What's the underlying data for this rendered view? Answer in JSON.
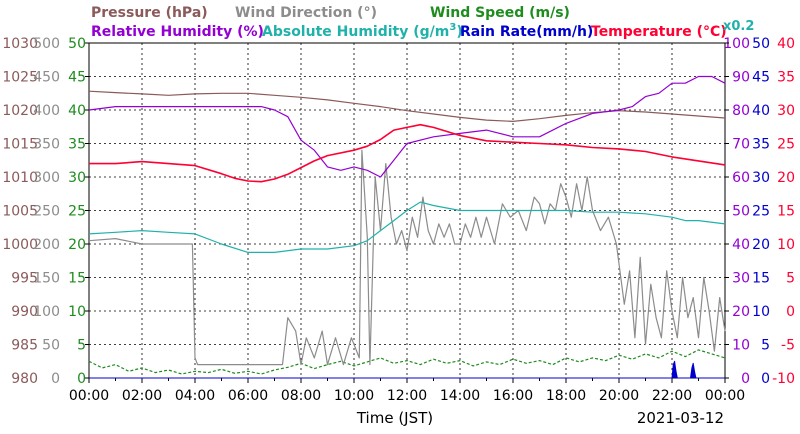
{
  "chart_data": {
    "type": "line",
    "legend": {
      "row1": [
        {
          "key": "pressure",
          "text": "Pressure (hPa)",
          "color": "#8b5a5a"
        },
        {
          "key": "wind_dir",
          "text": "Wind Direction (°)",
          "color": "#8c8c8c"
        },
        {
          "key": "wind_speed",
          "text": "Wind Speed (m/s)",
          "color": "#1e8c1e"
        }
      ],
      "row2": [
        {
          "key": "humidity",
          "text": "Relative Humidity (%)",
          "color": "#9400d3"
        },
        {
          "key": "abs_humidity",
          "text": "Absolute Humidity (g/m",
          "sup": "3",
          "tail": ")",
          "color": "#20b2aa"
        },
        {
          "key": "rain",
          "text": "Rain Rate(mm/h)",
          "color": "#0000cd"
        },
        {
          "key": "temperature",
          "text": "Temperature (°C)",
          "color": "#ff0033"
        }
      ],
      "multiplier": {
        "text": "x0.2",
        "color": "#20b2aa"
      }
    },
    "xlabel": "Time (JST)",
    "date": "2021-03-12",
    "x_ticks": [
      "00:00",
      "02:00",
      "04:00",
      "06:00",
      "08:00",
      "10:00",
      "12:00",
      "14:00",
      "16:00",
      "18:00",
      "20:00",
      "22:00",
      "00:00"
    ],
    "xlim_hours": [
      0,
      24
    ],
    "axes": {
      "pressure": {
        "min": 980,
        "max": 1030,
        "ticks": [
          "1030",
          "1025",
          "1020",
          "1015",
          "1010",
          "1005",
          "1000",
          "995",
          "990",
          "985",
          "980"
        ],
        "color": "#8b5a5a"
      },
      "wind_dir": {
        "min": 0,
        "max": 500,
        "ticks": [
          "500",
          "450",
          "400",
          "350",
          "300",
          "250",
          "200",
          "150",
          "100",
          "50",
          "0"
        ],
        "color": "#8c8c8c"
      },
      "wind_speed": {
        "min": 0,
        "max": 50,
        "ticks": [
          "50",
          "45",
          "40",
          "35",
          "30",
          "25",
          "20",
          "15",
          "10",
          "5",
          "0"
        ],
        "color": "#1e8c1e"
      },
      "humidity": {
        "min": 0,
        "max": 100,
        "ticks": [
          "100",
          "90",
          "80",
          "70",
          "60",
          "50",
          "40",
          "30",
          "20",
          "10",
          "0"
        ],
        "color": "#9400d3"
      },
      "rain": {
        "min": 0,
        "max": 50,
        "ticks": [
          "50",
          "45",
          "40",
          "35",
          "30",
          "25",
          "20",
          "15",
          "10",
          "5",
          "0"
        ],
        "color": "#0000cd"
      },
      "temperature": {
        "min": -10,
        "max": 40,
        "ticks": [
          "40",
          "35",
          "30",
          "25",
          "20",
          "15",
          "10",
          "5",
          "0",
          "-5",
          "-10"
        ],
        "color": "#ff0033"
      }
    },
    "series": [
      {
        "key": "pressure",
        "name": "Pressure (hPa)",
        "unit": "hPa",
        "color": "#8b5a5a",
        "x": [
          0,
          1,
          2,
          3,
          4,
          5,
          6,
          7,
          8,
          9,
          10,
          11,
          12,
          13,
          14,
          15,
          16,
          17,
          18,
          19,
          20,
          21,
          22,
          23,
          24
        ],
        "y": [
          1022.8,
          1022.6,
          1022.4,
          1022.2,
          1022.4,
          1022.5,
          1022.5,
          1022.2,
          1021.9,
          1021.5,
          1021.0,
          1020.5,
          1019.9,
          1019.4,
          1018.9,
          1018.5,
          1018.3,
          1018.7,
          1019.2,
          1019.6,
          1019.9,
          1019.7,
          1019.4,
          1019.1,
          1018.8
        ]
      },
      {
        "key": "humidity",
        "name": "Relative Humidity (%)",
        "unit": "%",
        "color": "#9400d3",
        "x": [
          0,
          1,
          2,
          3,
          4,
          5,
          6,
          6.5,
          7,
          7.5,
          8,
          8.5,
          9,
          9.5,
          10,
          10.5,
          11,
          11.5,
          12,
          13,
          14,
          15,
          16,
          17,
          18,
          19,
          20,
          20.5,
          21,
          21.5,
          22,
          22.5,
          23,
          23.5,
          24
        ],
        "y": [
          80,
          81,
          81,
          81,
          81,
          81,
          81,
          81,
          80,
          78,
          71,
          68,
          63,
          62,
          63,
          62,
          60,
          65,
          70,
          72,
          73,
          74,
          72,
          72,
          76,
          79,
          80,
          81,
          84,
          85,
          88,
          88,
          90,
          90,
          88
        ]
      },
      {
        "key": "abs_humidity",
        "name": "Absolute Humidity (g/m³)",
        "unit": "g/m³ ×0.2",
        "color": "#20b2aa",
        "x": [
          0,
          1,
          2,
          3,
          4,
          5,
          6,
          7,
          8,
          9,
          10,
          10.5,
          11,
          11.5,
          12,
          12.5,
          13,
          14,
          15,
          16,
          17,
          18,
          19,
          20,
          21,
          22,
          22.5,
          23,
          24
        ],
        "y": [
          43,
          43.5,
          44,
          43.5,
          43,
          40,
          37.5,
          37.5,
          38.5,
          38.5,
          39.5,
          41,
          44,
          47,
          50,
          52.5,
          51.5,
          50,
          50,
          50,
          50,
          50,
          49.5,
          49.5,
          49,
          48,
          47,
          47,
          46
        ]
      },
      {
        "key": "temperature",
        "name": "Temperature (°C)",
        "unit": "°C",
        "color": "#ff0033",
        "x": [
          0,
          1,
          2,
          3,
          4,
          5,
          5.5,
          6,
          6.5,
          7,
          7.5,
          8,
          8.5,
          9,
          10,
          10.5,
          11,
          11.5,
          12,
          12.5,
          13,
          14,
          15,
          16,
          17,
          18,
          19,
          20,
          21,
          22,
          23,
          24
        ],
        "y": [
          22,
          22,
          22.3,
          22,
          21.7,
          20.5,
          19.8,
          19.4,
          19.3,
          19.7,
          20.4,
          21.4,
          22.4,
          23.2,
          24,
          24.6,
          25.6,
          27,
          27.4,
          27.8,
          27.4,
          26.2,
          25.4,
          25.2,
          25,
          24.8,
          24.4,
          24.2,
          23.8,
          23,
          22.4,
          21.8
        ]
      },
      {
        "key": "wind_dir",
        "name": "Wind Direction (°)",
        "unit": "°",
        "color": "#8c8c8c",
        "x": [
          0,
          1,
          2,
          3,
          3.9,
          4.0,
          4.1,
          4.3,
          4.5,
          5,
          5.5,
          6,
          6.5,
          7,
          7.3,
          7.5,
          7.8,
          8.0,
          8.2,
          8.5,
          8.8,
          9.0,
          9.3,
          9.6,
          9.9,
          10.2,
          10.3,
          10.5,
          10.6,
          10.8,
          11.0,
          11.2,
          11.4,
          11.6,
          11.8,
          12.0,
          12.2,
          12.4,
          12.6,
          12.8,
          13.0,
          13.2,
          13.4,
          13.6,
          13.8,
          14.0,
          14.2,
          14.4,
          14.6,
          14.8,
          15.0,
          15.3,
          15.6,
          15.9,
          16.2,
          16.5,
          16.8,
          17.0,
          17.2,
          17.4,
          17.6,
          17.8,
          18.0,
          18.2,
          18.4,
          18.6,
          18.8,
          19.0,
          19.3,
          19.6,
          19.9,
          20.2,
          20.4,
          20.6,
          20.8,
          21.0,
          21.2,
          21.4,
          21.6,
          21.8,
          22.0,
          22.2,
          22.4,
          22.6,
          22.8,
          23.0,
          23.2,
          23.4,
          23.6,
          23.8,
          24.0
        ],
        "y": [
          205,
          208,
          200,
          200,
          200,
          30,
          20,
          20,
          20,
          20,
          20,
          20,
          20,
          20,
          20,
          90,
          70,
          20,
          60,
          30,
          70,
          20,
          60,
          20,
          60,
          30,
          340,
          210,
          20,
          300,
          220,
          320,
          240,
          200,
          220,
          190,
          240,
          210,
          270,
          220,
          200,
          230,
          210,
          230,
          200,
          200,
          230,
          210,
          240,
          210,
          240,
          200,
          260,
          240,
          250,
          220,
          270,
          260,
          230,
          260,
          250,
          290,
          270,
          240,
          290,
          250,
          300,
          250,
          220,
          240,
          200,
          110,
          160,
          60,
          180,
          50,
          140,
          90,
          60,
          160,
          100,
          60,
          150,
          90,
          120,
          60,
          150,
          100,
          40,
          120,
          70
        ]
      },
      {
        "key": "wind_speed",
        "name": "Wind Speed (m/s)",
        "unit": "m/s",
        "color": "#1e8c1e",
        "x": [
          0,
          0.5,
          1,
          1.5,
          2,
          2.5,
          3,
          3.5,
          4,
          4.5,
          5,
          5.5,
          6,
          6.5,
          7,
          7.5,
          8,
          8.5,
          9,
          9.5,
          10,
          10.5,
          11,
          11.5,
          12,
          12.5,
          13,
          13.5,
          14,
          14.5,
          15,
          15.5,
          16,
          16.5,
          17,
          17.5,
          18,
          18.5,
          19,
          19.5,
          20,
          20.5,
          21,
          21.5,
          22,
          22.5,
          23,
          23.5,
          24
        ],
        "y": [
          2.5,
          1.5,
          2,
          1,
          1.5,
          0.8,
          1.2,
          0.6,
          1,
          0.8,
          1.3,
          0.7,
          1,
          0.6,
          1.2,
          1.6,
          2.2,
          1.4,
          2,
          2.5,
          1.8,
          2.4,
          3,
          2.2,
          2.6,
          2,
          2.8,
          2.2,
          2.6,
          1.8,
          2.4,
          2,
          2.8,
          2.2,
          2.6,
          2,
          3,
          2.4,
          3,
          2.6,
          3.4,
          2.8,
          3.6,
          3,
          4,
          3.2,
          4.2,
          3.6,
          3
        ]
      },
      {
        "key": "rain",
        "name": "Rain Rate(mm/h)",
        "unit": "mm/h",
        "color": "#0000cd",
        "x": [
          0,
          22.0,
          22.05,
          22.1,
          22.15,
          22.2,
          22.3,
          22.7,
          22.75,
          22.8,
          22.85,
          22.9,
          24
        ],
        "y": [
          0,
          0,
          2,
          2.5,
          1,
          0,
          0,
          0,
          1.5,
          2.2,
          1,
          0,
          0
        ]
      }
    ]
  }
}
